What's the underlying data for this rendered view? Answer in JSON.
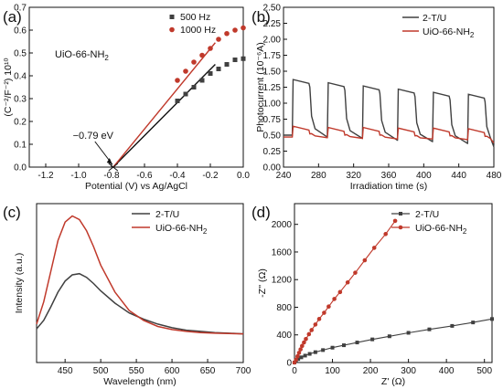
{
  "chart_data": [
    {
      "panel": "(a)",
      "type": "scatter",
      "annotation_sample": "UiO-66-NH",
      "annotation_sample_sub": "2",
      "annotation_value": "−0.79 eV",
      "xlabel": "Potential (V) vs Ag/AgCl",
      "ylabel": "(C⁻²/F⁻²) 10¹⁰",
      "xlim": [
        -1.3,
        0.0
      ],
      "ylim": [
        0.0,
        0.7
      ],
      "xticks": [
        -1.2,
        -1.0,
        -0.8,
        -0.6,
        -0.4,
        -0.2,
        0.0
      ],
      "xtick_labels": [
        "-1.2",
        "-1.0",
        "-0.8",
        "-0.6",
        "-0.4",
        "-0.2",
        "0.0"
      ],
      "yticks": [
        0.0,
        0.1,
        0.2,
        0.3,
        0.4,
        0.5,
        0.6,
        0.7
      ],
      "ytick_labels": [
        "0.0",
        "0.1",
        "0.2",
        "0.3",
        "0.4",
        "0.5",
        "0.6",
        "0.7"
      ],
      "legend_position": "top-right",
      "series": [
        {
          "name": "500 Hz",
          "color": "#404040",
          "marker": "square",
          "x": [
            -0.4,
            -0.35,
            -0.3,
            -0.25,
            -0.2,
            -0.15,
            -0.1,
            -0.05,
            0.0
          ],
          "y": [
            0.29,
            0.32,
            0.35,
            0.38,
            0.41,
            0.43,
            0.45,
            0.47,
            0.475
          ]
        },
        {
          "name": "1000 Hz",
          "color": "#c0392b",
          "marker": "circle",
          "x": [
            -0.4,
            -0.35,
            -0.3,
            -0.25,
            -0.2,
            -0.15,
            -0.1,
            -0.05,
            0.0
          ],
          "y": [
            0.38,
            0.42,
            0.46,
            0.49,
            0.52,
            0.56,
            0.585,
            0.6,
            0.61
          ]
        }
      ],
      "fit_lines": [
        {
          "color": "#111111",
          "x": [
            -0.79,
            -0.17
          ],
          "y": [
            0.0,
            0.45
          ]
        },
        {
          "color": "#c0392b",
          "x": [
            -0.79,
            -0.17
          ],
          "y": [
            0.0,
            0.545
          ]
        }
      ],
      "intercept": {
        "x": -0.79,
        "y": 0.0
      }
    },
    {
      "panel": "(b)",
      "type": "line",
      "xlabel": "Irradiation time (s)",
      "ylabel": "Photocurrent (10⁻⁶A)",
      "xlim": [
        240,
        480
      ],
      "ylim": [
        0.0,
        2.5
      ],
      "xticks": [
        240,
        280,
        320,
        360,
        400,
        440,
        480
      ],
      "xtick_labels": [
        "240",
        "280",
        "320",
        "360",
        "400",
        "440",
        "480"
      ],
      "yticks": [
        0.0,
        0.25,
        0.5,
        0.75,
        1.0,
        1.25,
        1.5,
        1.75,
        2.0,
        2.25,
        2.5
      ],
      "ytick_labels": [
        "0.00",
        "0.25",
        "0.50",
        "0.75",
        "1.00",
        "1.25",
        "1.50",
        "1.75",
        "2.00",
        "2.25",
        "2.50"
      ],
      "legend_position": "top-right",
      "series": [
        {
          "name": "2-T/U",
          "color": "#404040",
          "on_level": [
            1.35,
            1.3,
            1.25,
            1.2,
            1.15,
            1.12
          ],
          "off_level": [
            0.5,
            0.47,
            0.45,
            0.42,
            0.4,
            0.37
          ]
        },
        {
          "name": "UiO-66-NH",
          "name_sub": "2",
          "color": "#c0392b",
          "on_level": [
            0.62,
            0.6,
            0.6,
            0.59,
            0.59,
            0.58
          ],
          "off_level": [
            0.47,
            0.46,
            0.45,
            0.44,
            0.44,
            0.43
          ]
        }
      ],
      "on_times": [
        250,
        290,
        330,
        370,
        410,
        450
      ],
      "off_times": [
        270,
        310,
        350,
        390,
        430,
        470
      ]
    },
    {
      "panel": "(c)",
      "type": "line",
      "xlabel": "Wavelength (nm)",
      "ylabel": "Intensity (a.u.)",
      "xlim": [
        410,
        700
      ],
      "xticks": [
        450,
        500,
        550,
        600,
        650,
        700
      ],
      "xtick_labels": [
        "450",
        "500",
        "550",
        "600",
        "650",
        "700"
      ],
      "legend_position": "top-right",
      "series": [
        {
          "name": "2-T/U",
          "color": "#404040",
          "x": [
            410,
            420,
            430,
            440,
            450,
            460,
            470,
            480,
            490,
            500,
            520,
            540,
            560,
            580,
            600,
            620,
            640,
            660,
            680,
            700
          ],
          "y": [
            0.08,
            0.15,
            0.26,
            0.38,
            0.47,
            0.52,
            0.53,
            0.5,
            0.45,
            0.39,
            0.29,
            0.21,
            0.16,
            0.12,
            0.09,
            0.07,
            0.06,
            0.05,
            0.045,
            0.04
          ]
        },
        {
          "name": "UiO-66-NH",
          "name_sub": "2",
          "color": "#c0392b",
          "x": [
            410,
            420,
            430,
            440,
            450,
            460,
            470,
            480,
            490,
            500,
            520,
            540,
            560,
            580,
            600,
            620,
            640,
            660,
            680,
            700
          ],
          "y": [
            0.12,
            0.3,
            0.55,
            0.8,
            0.95,
            1.0,
            0.97,
            0.88,
            0.75,
            0.6,
            0.38,
            0.23,
            0.15,
            0.1,
            0.075,
            0.06,
            0.05,
            0.045,
            0.042,
            0.04
          ]
        }
      ]
    },
    {
      "panel": "(d)",
      "type": "line",
      "xlabel": "Z' (Ω)",
      "ylabel": "-Z'' (Ω)",
      "xlim": [
        0,
        520
      ],
      "ylim": [
        0,
        2300
      ],
      "xticks": [
        0,
        100,
        200,
        300,
        400,
        500
      ],
      "xtick_labels": [
        "0",
        "100",
        "200",
        "300",
        "400",
        "500"
      ],
      "yticks": [
        0,
        400,
        800,
        1200,
        1600,
        2000
      ],
      "ytick_labels": [
        "0",
        "400",
        "800",
        "1200",
        "1600",
        "2000"
      ],
      "legend_position": "top-right",
      "series": [
        {
          "name": "2-T/U",
          "color": "#404040",
          "x": [
            0,
            4,
            10,
            18,
            28,
            40,
            55,
            75,
            100,
            130,
            165,
            205,
            250,
            300,
            355,
            415,
            470,
            520
          ],
          "y": [
            0,
            25,
            50,
            75,
            100,
            125,
            150,
            180,
            215,
            250,
            290,
            335,
            380,
            430,
            480,
            530,
            580,
            630
          ]
        },
        {
          "name": "UiO-66-NH",
          "name_sub": "2",
          "color": "#c0392b",
          "x": [
            0,
            4,
            8,
            12,
            16,
            20,
            25,
            30,
            38,
            45,
            55,
            65,
            78,
            90,
            105,
            120,
            140,
            160,
            185,
            210,
            240,
            265
          ],
          "y": [
            0,
            40,
            90,
            140,
            190,
            240,
            290,
            340,
            410,
            470,
            550,
            630,
            720,
            810,
            920,
            1020,
            1160,
            1300,
            1480,
            1660,
            1860,
            2050
          ]
        }
      ]
    }
  ]
}
